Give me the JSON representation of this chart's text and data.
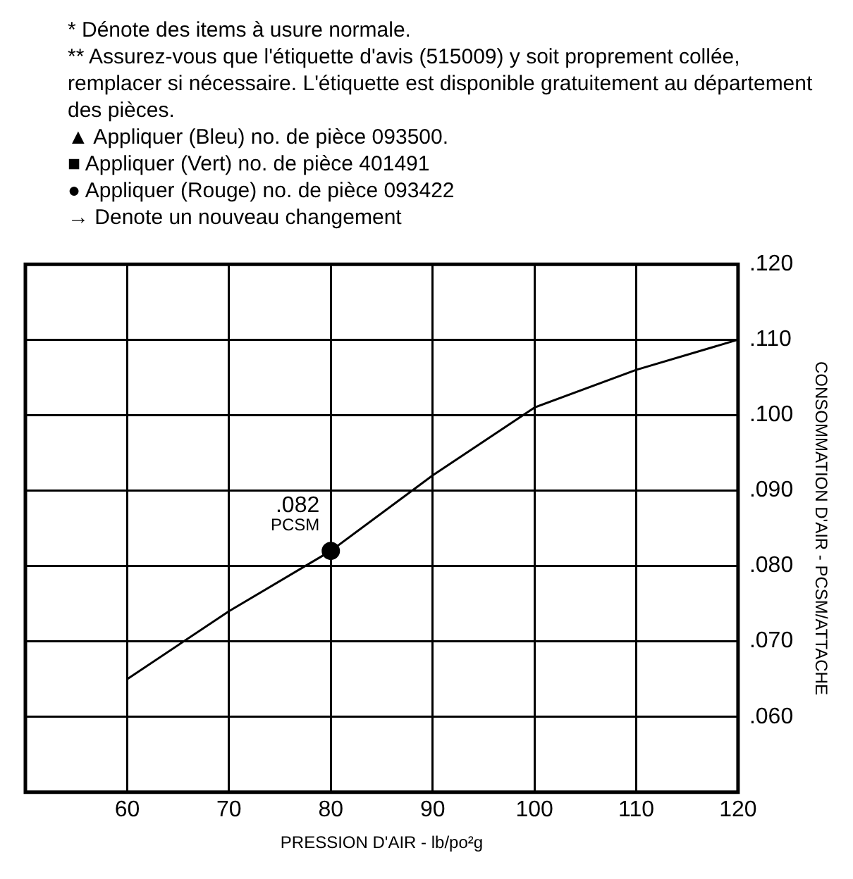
{
  "chart_data": {
    "type": "line",
    "xlabel": "PRESSION D'AIR - lb/po²g",
    "ylabel": "CONSOMMATION D'AIR - PCSM/ATTACHE",
    "series": [
      {
        "type": "line",
        "color": "#000000",
        "x": [
          60,
          70,
          80,
          90,
          100,
          110,
          120
        ],
        "values": [
          0.065,
          0.074,
          0.082,
          0.092,
          0.101,
          0.106,
          0.11
        ],
        "marker": "none"
      },
      {
        "type": "scatter",
        "color": "#000000",
        "x": [
          80
        ],
        "values": [
          0.082
        ],
        "marker": "circle"
      }
    ],
    "xlim": [
      50,
      120
    ],
    "xticks": [
      60,
      70,
      80,
      90,
      100,
      110,
      120
    ],
    "ylim": [
      0.05,
      0.12
    ],
    "yticks": [
      {
        "value": 0.06,
        "label": ".060"
      },
      {
        "value": 0.07,
        "label": ".070"
      },
      {
        "value": 0.08,
        "label": ".080"
      },
      {
        "value": 0.09,
        "label": ".090"
      },
      {
        "value": 0.1,
        "label": ".100"
      },
      {
        "value": 0.11,
        "label": ".110"
      },
      {
        "value": 0.12,
        "label": ".120"
      }
    ],
    "grid": true,
    "legend": false,
    "annotations": [
      {
        "text": ".082\nPCSM",
        "x": 80,
        "y": 0.082
      },
      "* Dénote des items à usure normale.",
      "** Assurez-vous que l'étiquette d'avis (515009) y soit proprement collée, remplacer si nécessaire.  L'étiquette est disponible gratuitement au département des pièces.",
      "▲ Appliquer (Bleu) no. de pièce 093500.",
      "■ Appliquer (Vert) no. de pièce 401491",
      "● Appliquer (Rouge) no. de pièce 093422",
      "→ Denote un nouveau changement"
    ]
  }
}
